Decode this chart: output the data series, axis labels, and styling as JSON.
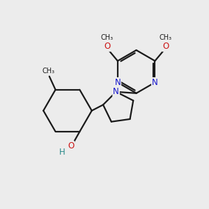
{
  "bg_color": "#ececec",
  "bond_color": "#1a1a1a",
  "N_color": "#1515cc",
  "O_color": "#cc1515",
  "HO_color": "#2a8a8a",
  "bond_width": 1.6,
  "font_size_atom": 8.5,
  "font_size_label": 8.5,
  "xlim": [
    0,
    10
  ],
  "ylim": [
    0,
    10
  ]
}
